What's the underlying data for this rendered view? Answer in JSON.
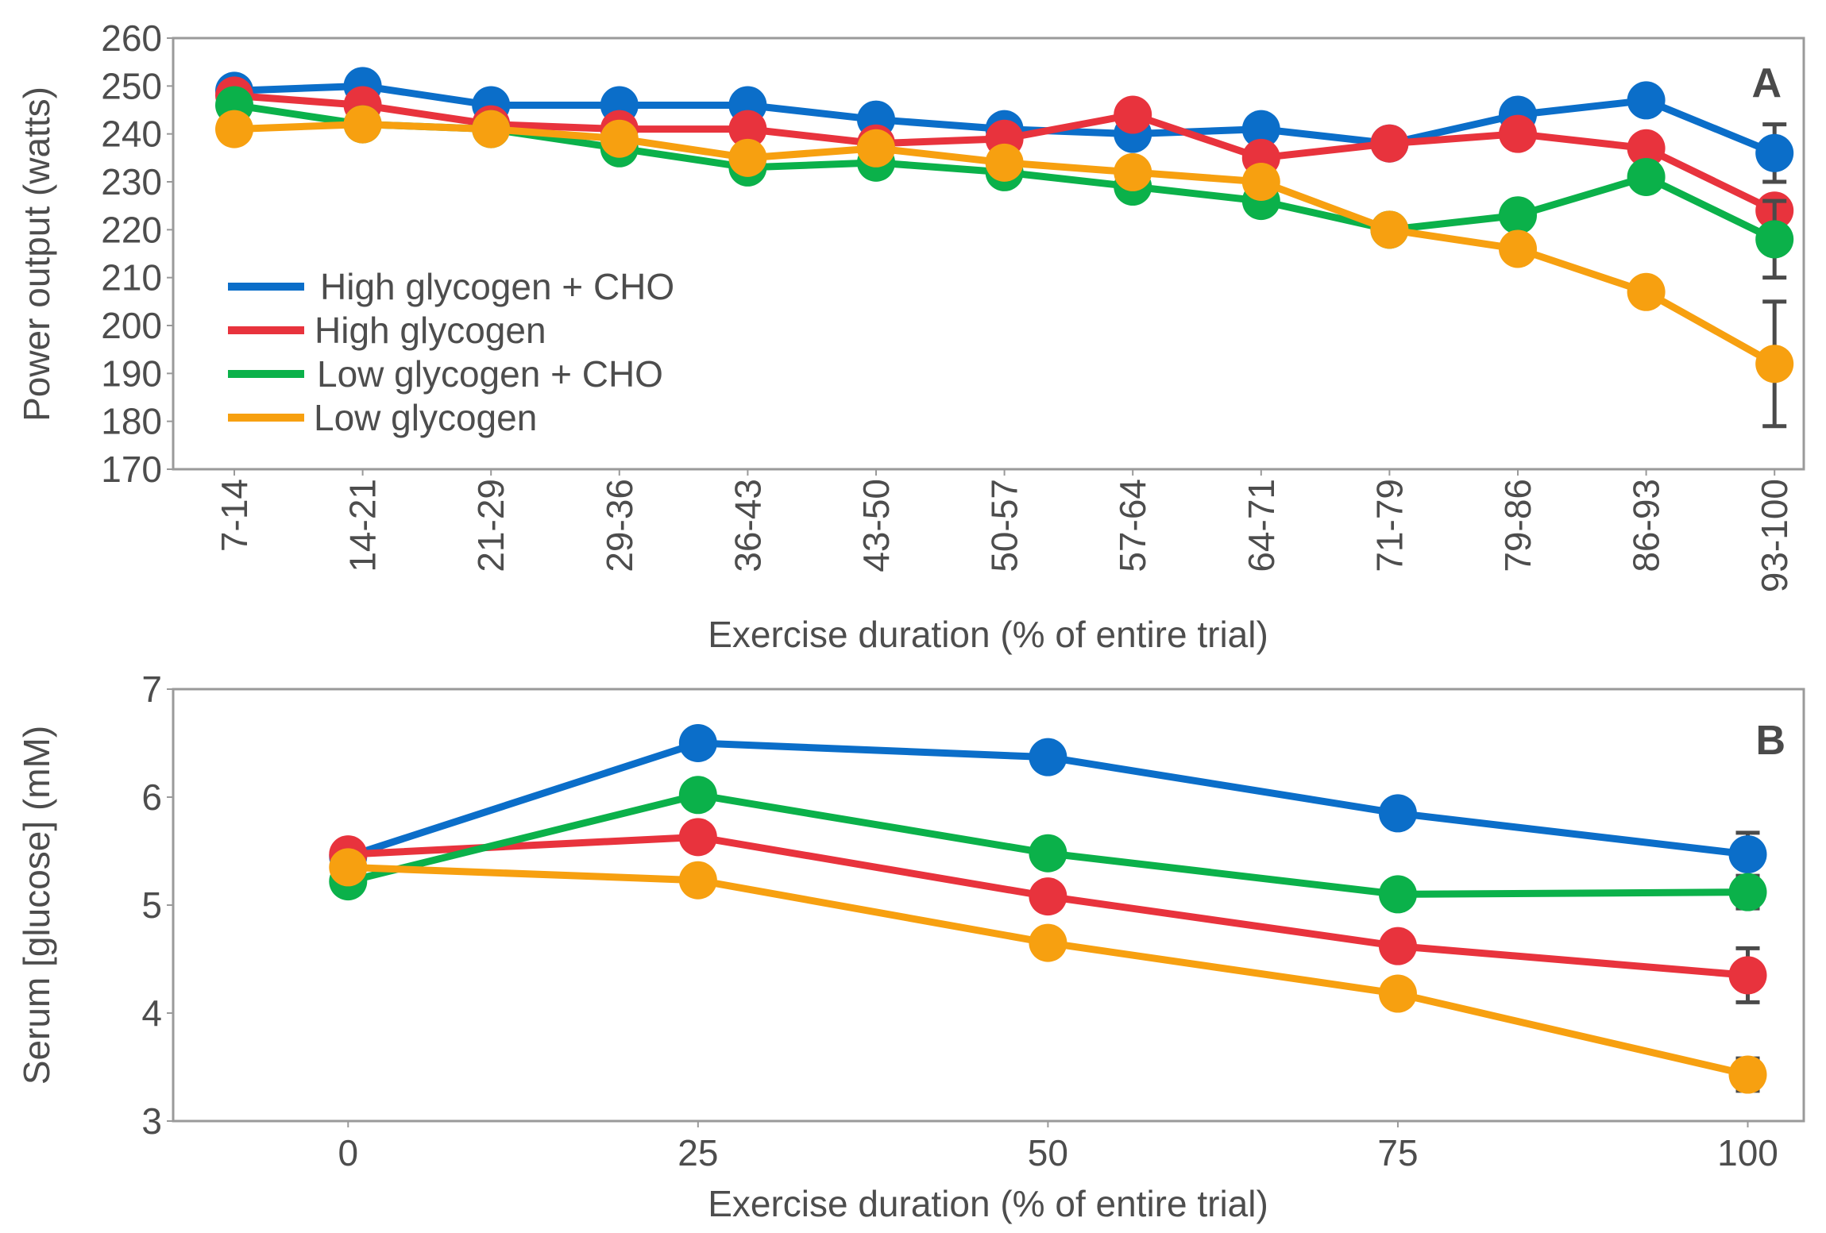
{
  "chart_data": [
    {
      "panel": "A",
      "type": "line",
      "title": "",
      "xlabel": "Exercise duration (% of entire trial)",
      "ylabel": "Power output (watts)",
      "categories": [
        "7-14",
        "14-21",
        "21-29",
        "29-36",
        "36-43",
        "43-50",
        "50-57",
        "57-64",
        "64-71",
        "71-79",
        "79-86",
        "86-93",
        "93-100"
      ],
      "ylim": [
        170,
        260
      ],
      "yticks": [
        170,
        180,
        190,
        200,
        210,
        220,
        230,
        240,
        250,
        260
      ],
      "legend_position": "center-left",
      "series": [
        {
          "name": "High glycogen + CHO",
          "color": "#0b6ec9",
          "values": [
            249,
            250,
            246,
            246,
            246,
            243,
            241,
            240,
            241,
            238,
            244,
            247,
            236
          ],
          "error_last": 6
        },
        {
          "name": "High glycogen",
          "color": "#e8333d",
          "values": [
            248,
            246,
            242,
            241,
            241,
            238,
            239,
            244,
            235,
            238,
            240,
            237,
            224
          ],
          "error_last": 0
        },
        {
          "name": "Low glycogen + CHO",
          "color": "#0bb14a",
          "values": [
            246,
            242,
            241,
            237,
            233,
            234,
            232,
            229,
            226,
            220,
            223,
            231,
            218
          ],
          "error_last": 8
        },
        {
          "name": "Low glycogen",
          "color": "#f7a010",
          "values": [
            241,
            242,
            241,
            239,
            235,
            237,
            234,
            232,
            230,
            220,
            216,
            207,
            192
          ],
          "error_last": 13
        }
      ]
    },
    {
      "panel": "B",
      "type": "line",
      "title": "",
      "xlabel": "Exercise duration (% of entire trial)",
      "ylabel": "Serum [glucose] (mM)",
      "x": [
        0,
        25,
        50,
        75,
        100
      ],
      "xticks": [
        "0",
        "25",
        "50",
        "75",
        "100"
      ],
      "xlim": [
        -12.5,
        104
      ],
      "ylim": [
        3,
        7
      ],
      "yticks": [
        "3",
        "4",
        "5",
        "6",
        "7"
      ],
      "series": [
        {
          "name": "High glycogen + CHO",
          "color": "#0b6ec9",
          "values": [
            5.45,
            6.5,
            6.37,
            5.85,
            5.47
          ],
          "error_last": 0.2
        },
        {
          "name": "High glycogen",
          "color": "#e8333d",
          "values": [
            5.47,
            5.63,
            5.08,
            4.62,
            4.35
          ],
          "error_last": 0.25
        },
        {
          "name": "Low glycogen + CHO",
          "color": "#0bb14a",
          "values": [
            5.22,
            6.02,
            5.48,
            5.1,
            5.12
          ],
          "error_last": 0.15
        },
        {
          "name": "Low glycogen",
          "color": "#f7a010",
          "values": [
            5.35,
            5.23,
            4.65,
            4.18,
            3.43
          ],
          "error_last": 0.15
        }
      ]
    }
  ]
}
